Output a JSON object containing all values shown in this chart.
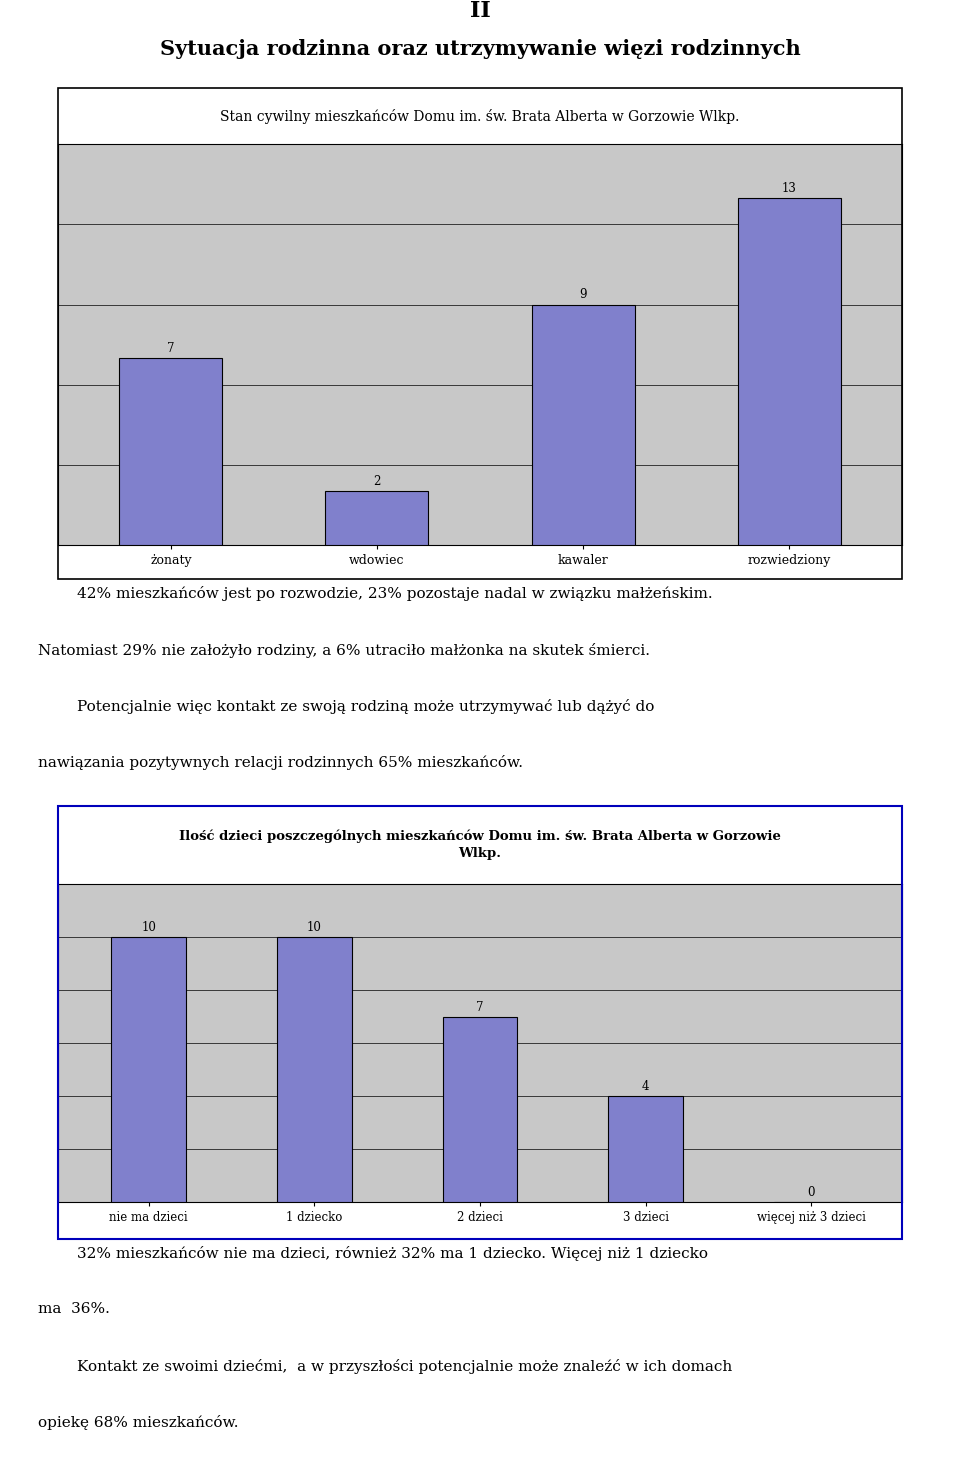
{
  "title_roman": "II",
  "title_main": "Sytuacja rodzinna oraz utrzymywanie więzi rodzinnych",
  "chart1_title": "Stan cywilny mieszkańców Domu im. św. Brata Alberta w Gorzowie Wlkp.",
  "chart1_categories": [
    "żonaty",
    "wdowiec",
    "kawaler",
    "rozwiedziony"
  ],
  "chart1_values": [
    7,
    2,
    9,
    13
  ],
  "chart1_bar_color": "#8080cc",
  "chart1_bar_edge_color": "#000000",
  "chart1_bg_color": "#c8c8c8",
  "chart1_title_bg": "#ffffff",
  "chart1_ylim": [
    0,
    15
  ],
  "chart1_grid_lines": [
    3,
    6,
    9,
    12,
    15
  ],
  "text1_lines": [
    "        42% mieszkańców jest po rozwodzie, 23% pozostaje nadal w związku małżeńskim.",
    "Natomiast 29% nie założyło rodziny, a 6% utraciło małżonka na skutek śmierci.",
    "        Potencjalnie więc kontakt ze swoją rodziną może utrzymywać lub dążyć do",
    "nawiązania pozytywnych relacji rodzinnych 65% mieszkańców."
  ],
  "chart2_title_line1": "Ilość dzieci poszczególnych mieszkańców Domu im. św. Brata Alberta w Gorzowie",
  "chart2_title_line2": "Wlkp.",
  "chart2_categories": [
    "nie ma dzieci",
    "1 dziecko",
    "2 dzieci",
    "3 dzieci",
    "więcej niż 3 dzieci"
  ],
  "chart2_values": [
    10,
    10,
    7,
    4,
    0
  ],
  "chart2_bar_color": "#8080cc",
  "chart2_bar_edge_color": "#000000",
  "chart2_bg_color": "#c8c8c8",
  "chart2_ylim": [
    0,
    12
  ],
  "chart2_grid_lines": [
    2,
    4,
    6,
    8,
    10,
    12
  ],
  "text2_lines": [
    "        32% mieszkańców nie ma dzieci, również 32% ma 1 dziecko. Więcej niż 1 dziecko",
    "ma  36%.",
    "        Kontakt ze swoimi dziećmi,  a w przyszłości potencjalnie może znaleźć w ich domach",
    "opiekę 68% mieszkańców."
  ],
  "bg_color": "#ffffff",
  "chart_border_color1": "#000000",
  "chart_border_color2": "#0000bb"
}
